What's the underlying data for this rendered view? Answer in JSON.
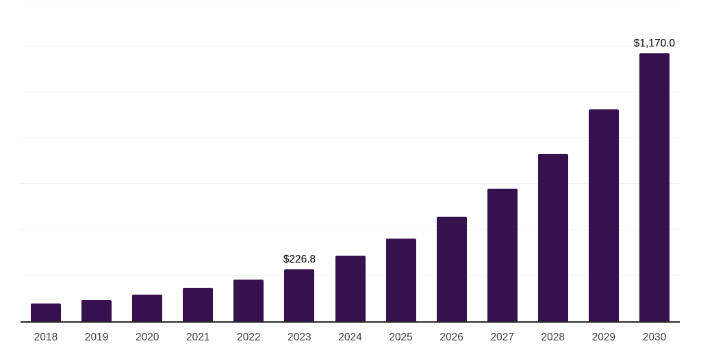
{
  "chart_data": {
    "type": "bar",
    "title": "",
    "xlabel": "",
    "ylabel": "",
    "categories": [
      "2018",
      "2019",
      "2020",
      "2021",
      "2022",
      "2023",
      "2024",
      "2025",
      "2026",
      "2027",
      "2028",
      "2029",
      "2030"
    ],
    "values": [
      78,
      92,
      116,
      146,
      181,
      226.8,
      286,
      362,
      458,
      579,
      732,
      925,
      1170
    ],
    "data_labels": [
      null,
      null,
      null,
      null,
      null,
      "$226.8",
      null,
      null,
      null,
      null,
      null,
      null,
      "$1,170.0"
    ],
    "ylim": [
      0,
      1400
    ],
    "gridline_step": 200,
    "grid": true,
    "legend_position": "none",
    "y_axis_ticks_visible": false,
    "bar_color": "#35114E",
    "gridline_color": "#F2F2F2",
    "axis_color": "#262626",
    "tick_label_color": "#3D3D3D",
    "data_label_color": "#000000"
  }
}
